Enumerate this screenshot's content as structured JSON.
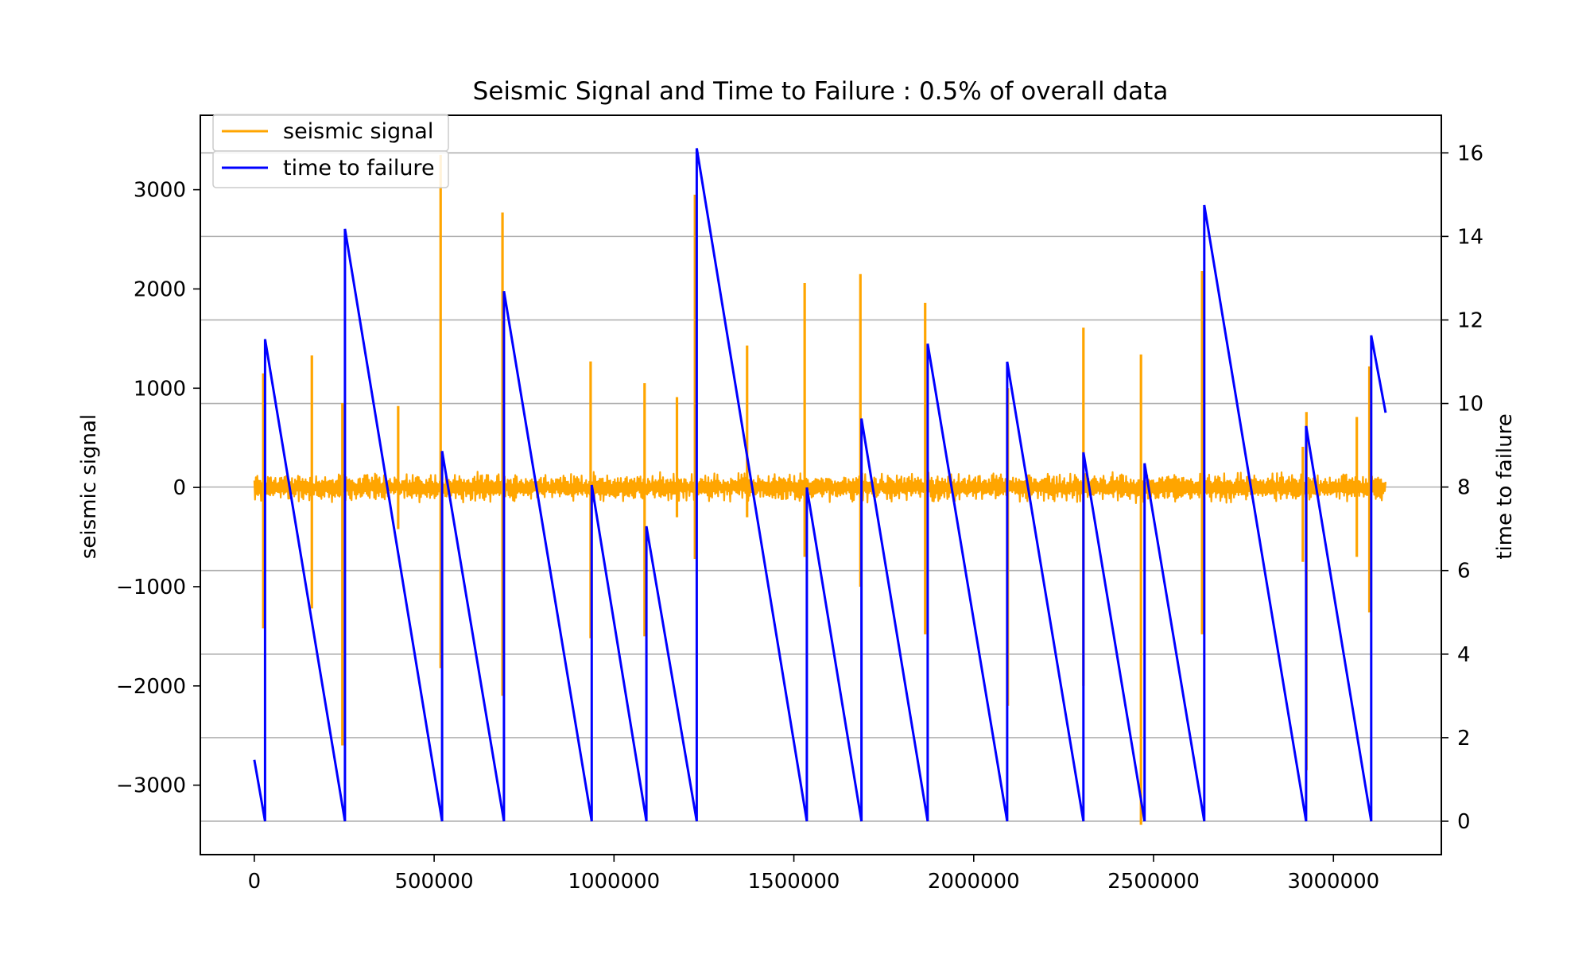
{
  "chart_data": {
    "type": "line",
    "title": "Seismic Signal and Time to Failure : 0.5% of overall data",
    "x_axis": {
      "range": [
        -150000,
        3300000
      ],
      "ticks": [
        0,
        500000,
        1000000,
        1500000,
        2000000,
        2500000,
        3000000
      ],
      "tick_labels": [
        "0",
        "500000",
        "1000000",
        "1500000",
        "2000000",
        "2500000",
        "3000000"
      ]
    },
    "y_axis_left": {
      "label": "seismic signal",
      "range": [
        -3700,
        3750
      ],
      "ticks": [
        -3000,
        -2000,
        -1000,
        0,
        1000,
        2000,
        3000
      ],
      "tick_labels": [
        "−3000",
        "−2000",
        "−1000",
        "0",
        "1000",
        "2000",
        "3000"
      ]
    },
    "y_axis_right": {
      "label": "time to failure",
      "range": [
        -0.8,
        16.9
      ],
      "ticks": [
        0,
        2,
        4,
        6,
        8,
        10,
        12,
        14,
        16
      ],
      "tick_labels": [
        "0",
        "2",
        "4",
        "6",
        "8",
        "10",
        "12",
        "14",
        "16"
      ],
      "grid": true
    },
    "legend": {
      "placement": "top-left"
    },
    "series": [
      {
        "name": "seismic signal",
        "axis": "left",
        "color": "#FFA500",
        "baseline_amplitude": 110,
        "spikes": [
          {
            "x": 25000,
            "min": -1420,
            "max": 1150
          },
          {
            "x": 160000,
            "min": -1220,
            "max": 1330
          },
          {
            "x": 245000,
            "min": -2600,
            "max": 850
          },
          {
            "x": 400000,
            "min": -420,
            "max": 820
          },
          {
            "x": 518000,
            "min": -1820,
            "max": 3350
          },
          {
            "x": 690000,
            "min": -2100,
            "max": 2770
          },
          {
            "x": 935000,
            "min": -1520,
            "max": 1270
          },
          {
            "x": 1085000,
            "min": -1500,
            "max": 1050
          },
          {
            "x": 1175000,
            "min": -300,
            "max": 910
          },
          {
            "x": 1225000,
            "min": -720,
            "max": 2950
          },
          {
            "x": 1370000,
            "min": -300,
            "max": 1430
          },
          {
            "x": 1530000,
            "min": -700,
            "max": 2060
          },
          {
            "x": 1685000,
            "min": -1000,
            "max": 2150
          },
          {
            "x": 1865000,
            "min": -1480,
            "max": 1860
          },
          {
            "x": 2095000,
            "min": -2200,
            "max": 1000
          },
          {
            "x": 2305000,
            "min": -2000,
            "max": 1610
          },
          {
            "x": 2465000,
            "min": -3400,
            "max": 1340
          },
          {
            "x": 2635000,
            "min": -1480,
            "max": 2180
          },
          {
            "x": 2915000,
            "min": -750,
            "max": 410
          },
          {
            "x": 2925000,
            "min": -2850,
            "max": 760
          },
          {
            "x": 3065000,
            "min": -700,
            "max": 710
          },
          {
            "x": 3100000,
            "min": -1260,
            "max": 1220
          }
        ]
      },
      {
        "name": "time to failure",
        "axis": "right",
        "color": "#0000FF",
        "points": [
          [
            0,
            1.47
          ],
          [
            30000,
            0.0
          ],
          [
            30000,
            11.54
          ],
          [
            252000,
            0.0
          ],
          [
            252000,
            14.18
          ],
          [
            522000,
            0.0
          ],
          [
            522000,
            8.86
          ],
          [
            694000,
            0.0
          ],
          [
            694000,
            12.69
          ],
          [
            938000,
            0.0
          ],
          [
            938000,
            8.05
          ],
          [
            1090000,
            0.0
          ],
          [
            1090000,
            7.06
          ],
          [
            1230000,
            0.0
          ],
          [
            1230000,
            16.11
          ],
          [
            1536000,
            0.0
          ],
          [
            1536000,
            7.99
          ],
          [
            1688000,
            0.0
          ],
          [
            1688000,
            9.64
          ],
          [
            1872000,
            0.0
          ],
          [
            1872000,
            11.43
          ],
          [
            2093000,
            0.0
          ],
          [
            2093000,
            11.0
          ],
          [
            2305000,
            0.0
          ],
          [
            2305000,
            8.83
          ],
          [
            2475000,
            0.0
          ],
          [
            2475000,
            8.57
          ],
          [
            2641000,
            0.0
          ],
          [
            2641000,
            14.75
          ],
          [
            2924000,
            0.0
          ],
          [
            2924000,
            9.46
          ],
          [
            3105000,
            0.0
          ],
          [
            3105000,
            11.63
          ],
          [
            3145000,
            9.78
          ]
        ]
      }
    ]
  }
}
